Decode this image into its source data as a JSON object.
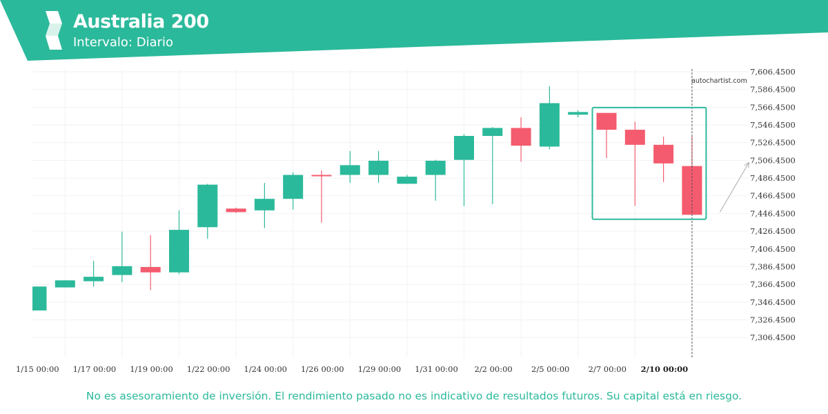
{
  "header": {
    "title": "Australia 200",
    "subtitle": "Intervalo: Diario",
    "brand_color": "#2bb99b"
  },
  "watermark": "autochartist.com",
  "disclaimer": "No es asesoramiento de inversión. El rendimiento pasado no es indicativo de resultados futuros. Su capital está en riesgo.",
  "colors": {
    "up": "#2bb99b",
    "down": "#f45b6e",
    "pattern_box": "#2bb99b",
    "arrow": "#aaaaaa"
  },
  "chart_data": {
    "type": "candlestick",
    "y_ticks": [
      "7,306.4500",
      "7,326.4500",
      "7,346.4500",
      "7,366.4500",
      "7,386.4500",
      "7,406.4500",
      "7,426.4500",
      "7,446.4500",
      "7,466.4500",
      "7,486.4500",
      "7,506.4500",
      "7,526.4500",
      "7,546.4500",
      "7,566.4500",
      "7,586.4500",
      "7,606.4500"
    ],
    "ylim": [
      7296.45,
      7606.45
    ],
    "x_tick_labels": [
      {
        "index": 1,
        "label": "1/15 00:00"
      },
      {
        "index": 3,
        "label": "1/17 00:00"
      },
      {
        "index": 5,
        "label": "1/19 00:00"
      },
      {
        "index": 7,
        "label": "1/22 00:00"
      },
      {
        "index": 9,
        "label": "1/24 00:00"
      },
      {
        "index": 11,
        "label": "1/26 00:00"
      },
      {
        "index": 13,
        "label": "1/29 00:00"
      },
      {
        "index": 15,
        "label": "1/31 00:00"
      },
      {
        "index": 17,
        "label": "2/2 00:00"
      },
      {
        "index": 19,
        "label": "2/5 00:00"
      },
      {
        "index": 21,
        "label": "2/7 00:00"
      },
      {
        "index": 23,
        "label": "2/10 00:00",
        "current": true
      }
    ],
    "candles": [
      {
        "o": 7337,
        "h": 7364,
        "l": 7337,
        "c": 7364
      },
      {
        "o": 7363,
        "h": 7371,
        "l": 7363,
        "c": 7371
      },
      {
        "o": 7370,
        "h": 7393,
        "l": 7364,
        "c": 7375
      },
      {
        "o": 7377,
        "h": 7426,
        "l": 7369,
        "c": 7387
      },
      {
        "o": 7386,
        "h": 7422,
        "l": 7360,
        "c": 7380
      },
      {
        "o": 7380,
        "h": 7450,
        "l": 7378,
        "c": 7428
      },
      {
        "o": 7431,
        "h": 7480,
        "l": 7418,
        "c": 7479
      },
      {
        "o": 7452,
        "h": 7453,
        "l": 7447,
        "c": 7448
      },
      {
        "o": 7450,
        "h": 7481,
        "l": 7430,
        "c": 7463
      },
      {
        "o": 7463,
        "h": 7493,
        "l": 7451,
        "c": 7490
      },
      {
        "o": 7490,
        "h": 7495,
        "l": 7436,
        "c": 7489
      },
      {
        "o": 7490,
        "h": 7517,
        "l": 7481,
        "c": 7501
      },
      {
        "o": 7490,
        "h": 7517,
        "l": 7481,
        "c": 7506
      },
      {
        "o": 7480,
        "h": 7490,
        "l": 7480,
        "c": 7488
      },
      {
        "o": 7490,
        "h": 7507,
        "l": 7461,
        "c": 7506
      },
      {
        "o": 7507,
        "h": 7536,
        "l": 7455,
        "c": 7534
      },
      {
        "o": 7534,
        "h": 7544,
        "l": 7457,
        "c": 7543
      },
      {
        "o": 7543,
        "h": 7555,
        "l": 7505,
        "c": 7523
      },
      {
        "o": 7522,
        "h": 7590,
        "l": 7519,
        "c": 7571
      },
      {
        "o": 7558,
        "h": 7563,
        "l": 7555,
        "c": 7561
      },
      {
        "o": 7560,
        "h": 7560,
        "l": 7509,
        "c": 7541
      },
      {
        "o": 7541,
        "h": 7550,
        "l": 7455,
        "c": 7524
      },
      {
        "o": 7524,
        "h": 7533,
        "l": 7482,
        "c": 7503
      },
      {
        "o": 7500,
        "h": 7534,
        "l": 7446,
        "c": 7445
      }
    ],
    "pattern_box": {
      "from_index": 20,
      "to_index": 23,
      "price_low": 7440,
      "price_high": 7566
    },
    "forecast_arrow": {
      "from_price": 7448,
      "to_price": 7504
    }
  }
}
